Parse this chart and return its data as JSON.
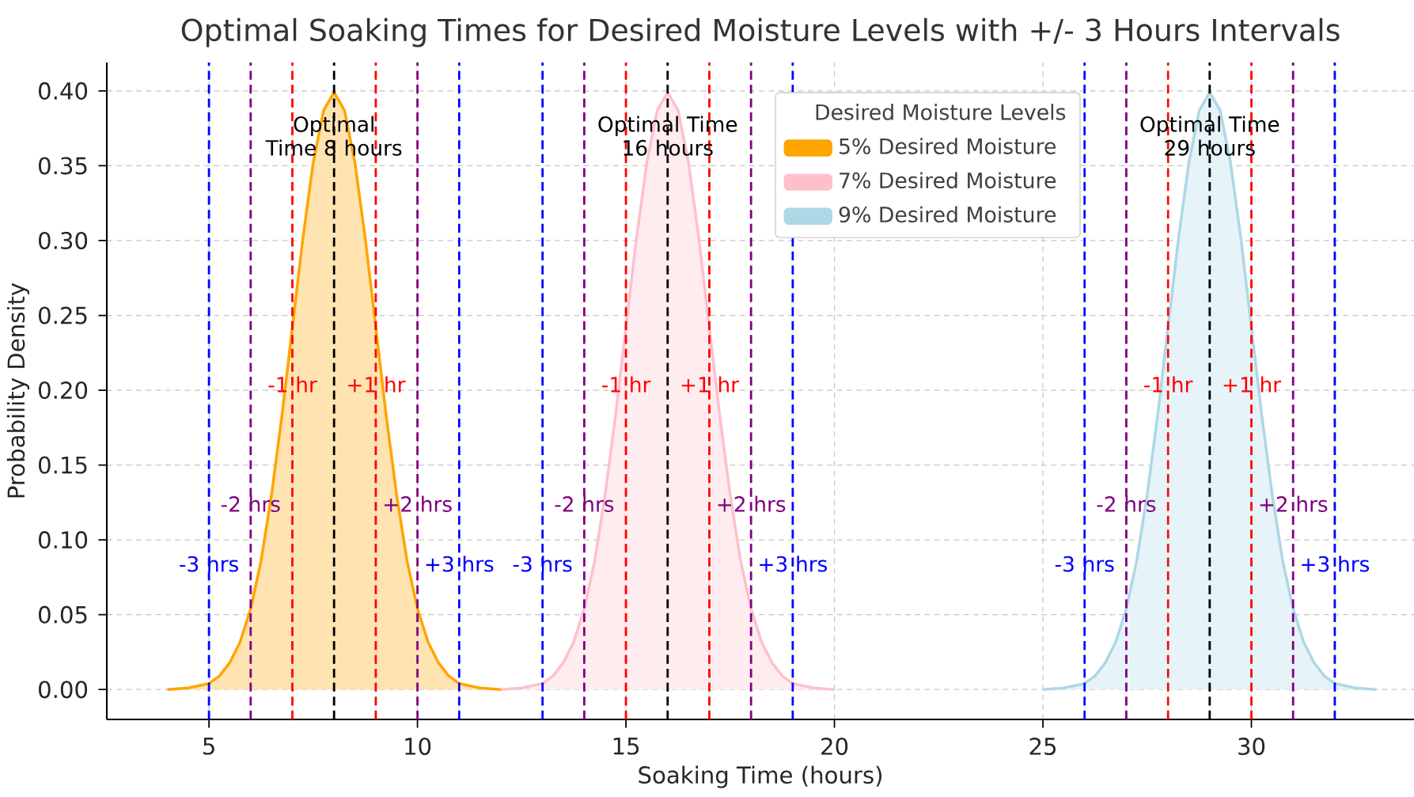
{
  "chart_data": {
    "type": "area",
    "title": "Optimal Soaking Times for Desired Moisture Levels with +/- 3 Hours Intervals",
    "xlabel": "Soaking Time (hours)",
    "ylabel": "Probability Density",
    "legend_title": "Desired Moisture Levels",
    "series": [
      {
        "name": "5% Desired Moisture",
        "color": "#ffa500",
        "x": [
          4,
          4.5,
          5,
          5.25,
          5.5,
          5.75,
          6,
          6.25,
          6.5,
          6.75,
          7,
          7.25,
          7.5,
          7.75,
          8,
          8.25,
          8.5,
          8.75,
          9,
          9.25,
          9.5,
          9.75,
          10,
          10.25,
          10.5,
          10.75,
          11,
          11.5,
          12
        ],
        "values": [
          0,
          0.001,
          0.004,
          0.009,
          0.018,
          0.032,
          0.054,
          0.086,
          0.13,
          0.183,
          0.242,
          0.301,
          0.352,
          0.387,
          0.399,
          0.387,
          0.352,
          0.301,
          0.242,
          0.183,
          0.13,
          0.086,
          0.054,
          0.032,
          0.018,
          0.009,
          0.004,
          0.001,
          0
        ]
      },
      {
        "name": "7% Desired Moisture",
        "color": "#ffc0cb",
        "x": [
          12,
          12.5,
          13,
          13.25,
          13.5,
          13.75,
          14,
          14.25,
          14.5,
          14.75,
          15,
          15.25,
          15.5,
          15.75,
          16,
          16.25,
          16.5,
          16.75,
          17,
          17.25,
          17.5,
          17.75,
          18,
          18.25,
          18.5,
          18.75,
          19,
          19.5,
          20
        ],
        "values": [
          0,
          0.001,
          0.004,
          0.009,
          0.018,
          0.032,
          0.054,
          0.086,
          0.13,
          0.183,
          0.242,
          0.301,
          0.352,
          0.387,
          0.399,
          0.387,
          0.352,
          0.301,
          0.242,
          0.183,
          0.13,
          0.086,
          0.054,
          0.032,
          0.018,
          0.009,
          0.004,
          0.001,
          0
        ]
      },
      {
        "name": "9% Desired Moisture",
        "color": "#add8e6",
        "x": [
          25,
          25.5,
          26,
          26.25,
          26.5,
          26.75,
          27,
          27.25,
          27.5,
          27.75,
          28,
          28.25,
          28.5,
          28.75,
          29,
          29.25,
          29.5,
          29.75,
          30,
          30.25,
          30.5,
          30.75,
          31,
          31.25,
          31.5,
          31.75,
          32,
          32.5,
          33
        ],
        "values": [
          0,
          0.001,
          0.004,
          0.009,
          0.018,
          0.032,
          0.054,
          0.086,
          0.13,
          0.183,
          0.242,
          0.301,
          0.352,
          0.387,
          0.399,
          0.387,
          0.352,
          0.301,
          0.242,
          0.183,
          0.13,
          0.086,
          0.054,
          0.032,
          0.018,
          0.009,
          0.004,
          0.001,
          0
        ]
      }
    ],
    "xlim": [
      2.55,
      33.9
    ],
    "ylim": [
      -0.02,
      0.419
    ],
    "xticks": [
      5,
      10,
      15,
      20,
      25,
      30
    ],
    "yticks": [
      {
        "value": 0,
        "label": "0.00"
      },
      {
        "value": 0.05,
        "label": "0.05"
      },
      {
        "value": 0.1,
        "label": "0.10"
      },
      {
        "value": 0.15,
        "label": "0.15"
      },
      {
        "value": 0.2,
        "label": "0.20"
      },
      {
        "value": 0.25,
        "label": "0.25"
      },
      {
        "value": 0.3,
        "label": "0.30"
      },
      {
        "value": 0.35,
        "label": "0.35"
      },
      {
        "value": 0.4,
        "label": "0.40"
      }
    ],
    "grid": true,
    "legend": "top right",
    "ref_lines": [
      {
        "axis": "x",
        "value": 5,
        "color": "#0000ff",
        "line_style": "dashed"
      },
      {
        "axis": "x",
        "value": 6,
        "color": "#800080",
        "line_style": "dashed"
      },
      {
        "axis": "x",
        "value": 7,
        "color": "#ff0000",
        "line_style": "dashed"
      },
      {
        "axis": "x",
        "value": 8,
        "color": "#000000",
        "line_style": "dashed"
      },
      {
        "axis": "x",
        "value": 9,
        "color": "#ff0000",
        "line_style": "dashed"
      },
      {
        "axis": "x",
        "value": 10,
        "color": "#800080",
        "line_style": "dashed"
      },
      {
        "axis": "x",
        "value": 11,
        "color": "#0000ff",
        "line_style": "dashed"
      },
      {
        "axis": "x",
        "value": 13,
        "color": "#0000ff",
        "line_style": "dashed"
      },
      {
        "axis": "x",
        "value": 14,
        "color": "#800080",
        "line_style": "dashed"
      },
      {
        "axis": "x",
        "value": 15,
        "color": "#ff0000",
        "line_style": "dashed"
      },
      {
        "axis": "x",
        "value": 16,
        "color": "#000000",
        "line_style": "dashed"
      },
      {
        "axis": "x",
        "value": 17,
        "color": "#ff0000",
        "line_style": "dashed"
      },
      {
        "axis": "x",
        "value": 18,
        "color": "#800080",
        "line_style": "dashed"
      },
      {
        "axis": "x",
        "value": 19,
        "color": "#0000ff",
        "line_style": "dashed"
      },
      {
        "axis": "x",
        "value": 26,
        "color": "#0000ff",
        "line_style": "dashed"
      },
      {
        "axis": "x",
        "value": 27,
        "color": "#800080",
        "line_style": "dashed"
      },
      {
        "axis": "x",
        "value": 28,
        "color": "#ff0000",
        "line_style": "dashed"
      },
      {
        "axis": "x",
        "value": 29,
        "color": "#000000",
        "line_style": "dashed"
      },
      {
        "axis": "x",
        "value": 30,
        "color": "#ff0000",
        "line_style": "dashed"
      },
      {
        "axis": "x",
        "value": 31,
        "color": "#800080",
        "line_style": "dashed"
      },
      {
        "axis": "x",
        "value": 32,
        "color": "#0000ff",
        "line_style": "dashed"
      }
    ],
    "annotations": [
      {
        "text": "Optimal Time 8 hours",
        "x": 8,
        "y": 0.37
      },
      {
        "text": "-1 hr",
        "x": 7,
        "y": 0.204
      },
      {
        "text": "+1 hr",
        "x": 9,
        "y": 0.204
      },
      {
        "text": "-2 hrs",
        "x": 6,
        "y": 0.124
      },
      {
        "text": "+2 hrs",
        "x": 10,
        "y": 0.124
      },
      {
        "text": "-3 hrs",
        "x": 5,
        "y": 0.084
      },
      {
        "text": "+3 hrs",
        "x": 11,
        "y": 0.084
      },
      {
        "text": "Optimal Time 16 hours",
        "x": 16,
        "y": 0.37
      },
      {
        "text": "-1 hr",
        "x": 15,
        "y": 0.204
      },
      {
        "text": "+1 hr",
        "x": 17,
        "y": 0.204
      },
      {
        "text": "-2 hrs",
        "x": 14,
        "y": 0.124
      },
      {
        "text": "+2 hrs",
        "x": 18,
        "y": 0.124
      },
      {
        "text": "-3 hrs",
        "x": 13,
        "y": 0.084
      },
      {
        "text": "+3 hrs",
        "x": 19,
        "y": 0.084
      },
      {
        "text": "Optimal Time 29 hours",
        "x": 29,
        "y": 0.37
      },
      {
        "text": "-1 hr",
        "x": 28,
        "y": 0.204
      },
      {
        "text": "+1 hr",
        "x": 30,
        "y": 0.204
      },
      {
        "text": "-2 hrs",
        "x": 27,
        "y": 0.124
      },
      {
        "text": "+2 hrs",
        "x": 31,
        "y": 0.124
      },
      {
        "text": "-3 hrs",
        "x": 26,
        "y": 0.084
      },
      {
        "text": "+3 hrs",
        "x": 32,
        "y": 0.084
      }
    ]
  }
}
